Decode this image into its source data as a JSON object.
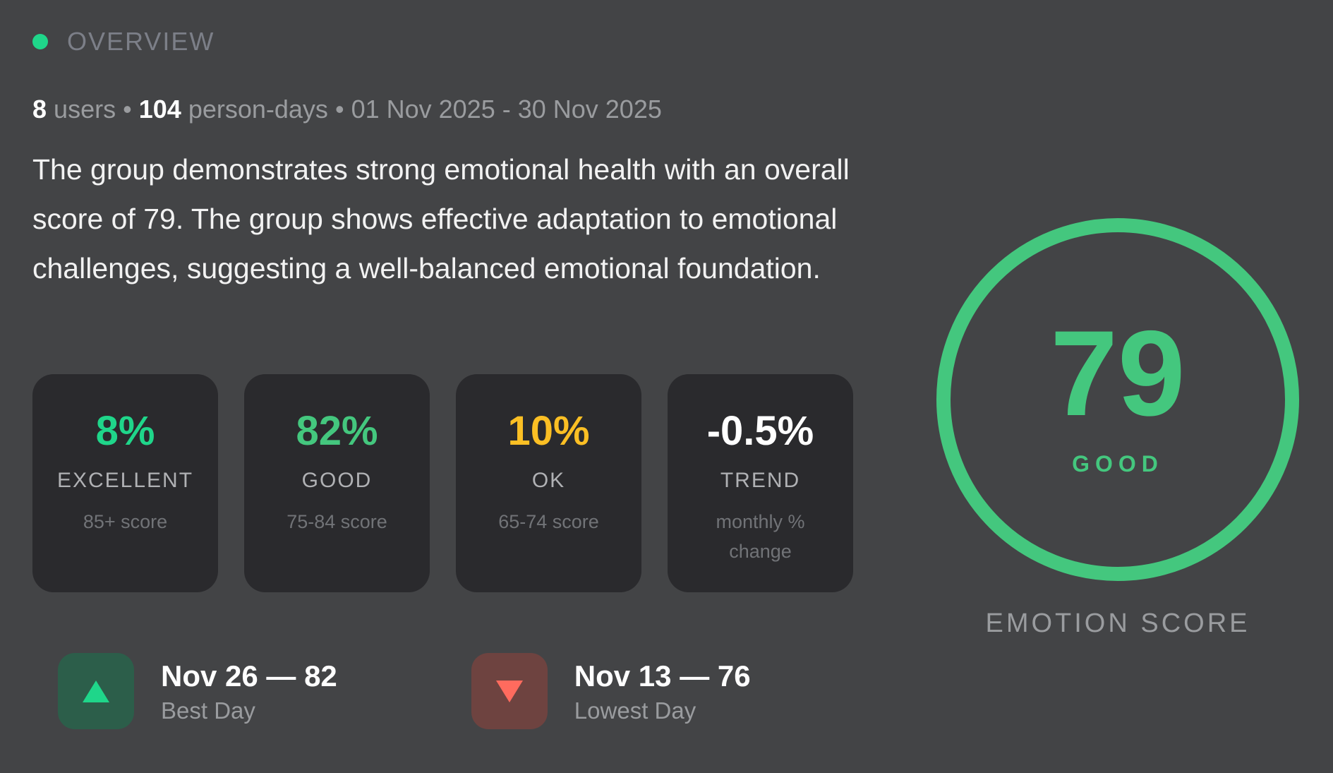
{
  "header": {
    "label": "OVERVIEW",
    "status_color": "#1fd68a"
  },
  "stats": {
    "users_count": "8",
    "users_label": "users",
    "separator": "•",
    "person_days_count": "104",
    "person_days_label": "person-days",
    "date_range": "01 Nov 2025 - 30 Nov 2025"
  },
  "summary": "The group demonstrates strong emotional health with an overall score of 79. The group shows effective adaptation to emotional challenges, suggesting a well-balanced emotional foundation.",
  "cards": [
    {
      "value": "8%",
      "label": "EXCELLENT",
      "sub": "85+ score",
      "color": "#1fd68a"
    },
    {
      "value": "82%",
      "label": "GOOD",
      "sub": "75-84 score",
      "color": "#44c77e"
    },
    {
      "value": "10%",
      "label": "OK",
      "sub": "65-74 score",
      "color": "#fbbf24"
    },
    {
      "value": "-0.5%",
      "label": "TREND",
      "sub": "monthly % change",
      "color": "#ffffff"
    }
  ],
  "best_day": {
    "title": "Nov 26 — 82",
    "label": "Best Day",
    "icon": "triangle-up-icon",
    "color": "#1fd68a"
  },
  "lowest_day": {
    "title": "Nov 13 — 76",
    "label": "Lowest Day",
    "icon": "triangle-down-icon",
    "color": "#ff6b5e"
  },
  "gauge": {
    "score": "79",
    "level": "GOOD",
    "caption": "EMOTION SCORE",
    "color": "#44c77e"
  }
}
